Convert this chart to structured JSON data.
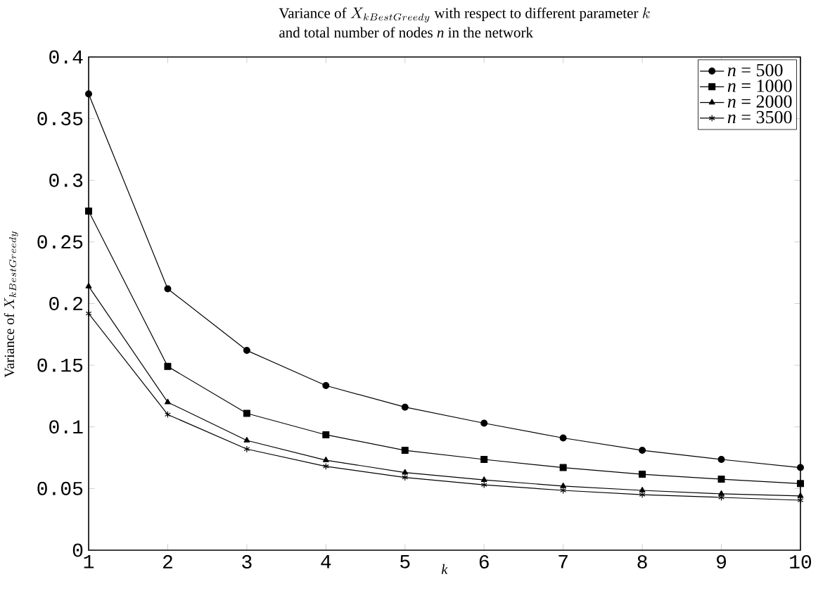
{
  "chart_data": {
    "type": "line",
    "title": "\\text{Variance of } X_{kBestGreedy} \\text{ with respect to different parameter } k",
    "subtitle": "and total number of nodes *n* in the network",
    "xlabel": "*k*",
    "ylabel": "\\text{Variance of } X_{kBestGreedy}",
    "x": [
      1,
      2,
      3,
      4,
      5,
      6,
      7,
      8,
      9,
      10
    ],
    "series": [
      {
        "name": "*n* = 500",
        "color": "#000000",
        "marker": "circle",
        "values": [
          0.37,
          0.212,
          0.162,
          0.1335,
          0.116,
          0.103,
          0.091,
          0.081,
          0.0736,
          0.067
        ]
      },
      {
        "name": "*n* = 1000",
        "color": "#000000",
        "marker": "square",
        "values": [
          0.275,
          0.149,
          0.111,
          0.0936,
          0.081,
          0.0736,
          0.067,
          0.0616,
          0.0576,
          0.054
        ]
      },
      {
        "name": "*n* = 2000",
        "color": "#000000",
        "marker": "triangle",
        "values": [
          0.214,
          0.12,
          0.089,
          0.073,
          0.063,
          0.057,
          0.052,
          0.0485,
          0.0457,
          0.044
        ]
      },
      {
        "name": "*n* = 3500",
        "color": "#000000",
        "marker": "cross",
        "values": [
          0.192,
          0.11,
          0.082,
          0.068,
          0.059,
          0.053,
          0.0485,
          0.045,
          0.0428,
          0.0405
        ]
      }
    ],
    "xlim": [
      1,
      10
    ],
    "xticks": [
      1,
      2,
      3,
      4,
      5,
      6,
      7,
      8,
      9,
      10
    ],
    "ylim": [
      0,
      0.4
    ],
    "yticks": [
      0,
      0.05,
      0.1,
      0.15,
      0.2,
      0.25,
      0.3,
      0.35,
      0.4
    ],
    "grid": false,
    "legend": "top right",
    "line_style": "solid"
  }
}
